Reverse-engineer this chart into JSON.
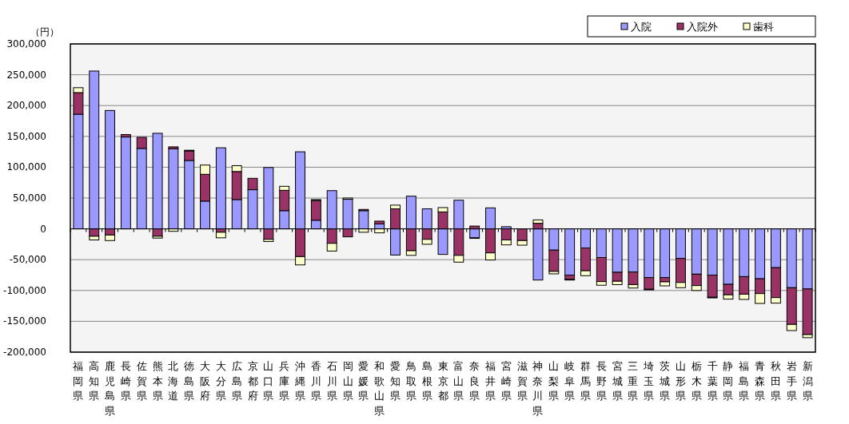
{
  "chart_data": {
    "type": "bar",
    "stacked": true,
    "ylabel": "（円）",
    "legend": "top right",
    "grid": "y",
    "categories": [
      "福岡県",
      "高知県",
      "鹿児島県",
      "長崎県",
      "佐賀県",
      "熊本県",
      "北海道",
      "徳島県",
      "大阪府",
      "大分県",
      "広島県",
      "京都府",
      "山口県",
      "兵庫県",
      "沖縄県",
      "香川県",
      "石川県",
      "岡山県",
      "愛媛県",
      "和歌山県",
      "愛知県",
      "鳥取県",
      "島根県",
      "東京都",
      "富山県",
      "奈良県",
      "福井県",
      "宮崎県",
      "滋賀県",
      "神奈川県",
      "山梨県",
      "岐阜県",
      "群馬県",
      "長野県",
      "宮城県",
      "三重県",
      "埼玉県",
      "茨城県",
      "山形県",
      "栃木県",
      "千葉県",
      "静岡県",
      "福島県",
      "青森県",
      "秋田県",
      "岩手県",
      "新潟県"
    ],
    "ylim": [
      -200000,
      300000
    ],
    "yticks": [
      {
        "value": -200000,
        "label": "-200,000"
      },
      {
        "value": -150000,
        "label": "-150,000"
      },
      {
        "value": -100000,
        "label": "-100,000"
      },
      {
        "value": -50000,
        "label": "-50,000"
      },
      0,
      {
        "value": 50000,
        "label": "50,000"
      },
      {
        "value": 100000,
        "label": "100,000"
      },
      {
        "value": 150000,
        "label": "150,000"
      },
      {
        "value": 200000,
        "label": "200,000"
      },
      {
        "value": 250000,
        "label": "250,000"
      },
      {
        "value": 300000,
        "label": "300,000"
      }
    ],
    "series": [
      {
        "name": "入院",
        "color": "#9999ff",
        "values": [
          186000,
          256000,
          192000,
          149000,
          130500,
          155000,
          130000,
          111000,
          45000,
          131500,
          47500,
          63500,
          99500,
          29500,
          125000,
          14000,
          62000,
          48000,
          29500,
          8000,
          -42500,
          53000,
          32500,
          -41500,
          46500,
          -14500,
          34000,
          3500,
          null,
          -83000,
          -34500,
          -75000,
          -31000,
          -46500,
          -70500,
          -70000,
          -79000,
          -79000,
          -48000,
          -73500,
          -75000,
          -90000,
          -77500,
          -81000,
          -63000,
          -95500,
          -97500
        ]
      },
      {
        "name": "入院外",
        "color": "#993366",
        "values": [
          35000,
          -12000,
          -10000,
          4000,
          18000,
          -12000,
          3000,
          15500,
          43500,
          -5500,
          45500,
          18500,
          -17000,
          33000,
          -45000,
          32000,
          -23500,
          -13000,
          2000,
          4500,
          32500,
          -35500,
          -17000,
          27500,
          -43000,
          4500,
          -39000,
          -18000,
          -19000,
          9000,
          -34500,
          -7000,
          -37000,
          -39000,
          -14500,
          -20500,
          -19000,
          -7000,
          -39000,
          -18500,
          -36000,
          -17000,
          -28500,
          -24000,
          -48500,
          -59500,
          -74000
        ]
      },
      {
        "name": "歯科",
        "color": "#ffffcc",
        "values": [
          8000,
          -6000,
          -9000,
          null,
          null,
          -3000,
          -4000,
          1000,
          15000,
          -9000,
          9500,
          null,
          -3500,
          6500,
          -13500,
          1500,
          -12500,
          2000,
          -5500,
          -6500,
          6000,
          -7500,
          -8000,
          7000,
          -11000,
          -1000,
          -11500,
          -8000,
          -7500,
          5500,
          -4000,
          -1000,
          -8000,
          -6000,
          -5500,
          -5500,
          -1000,
          -6500,
          -8500,
          -8000,
          -1000,
          -7000,
          -8500,
          -16000,
          -9000,
          -10000,
          -5000
        ]
      }
    ]
  }
}
